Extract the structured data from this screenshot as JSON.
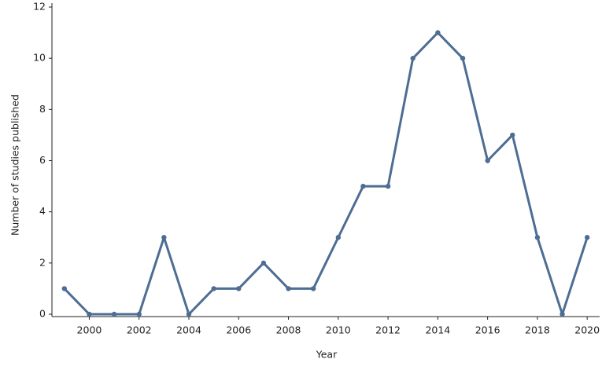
{
  "chart_data": {
    "type": "line",
    "x_label": "Year",
    "y_label": "Number of studies published",
    "x": [
      1999,
      2000,
      2001,
      2002,
      2003,
      2004,
      2005,
      2006,
      2007,
      2008,
      2009,
      2010,
      2011,
      2012,
      2013,
      2014,
      2015,
      2016,
      2017,
      2018,
      2019,
      2020
    ],
    "series": [
      {
        "color": "#4e6d93",
        "values": [
          1,
          0,
          0,
          0,
          3,
          0,
          1,
          1,
          2,
          1,
          1,
          3,
          5,
          5,
          10,
          11,
          10,
          6,
          7,
          3,
          0,
          3
        ]
      }
    ],
    "xlim": [
      1998.5,
      2020.5
    ],
    "xticks": [
      2000,
      2002,
      2004,
      2006,
      2008,
      2010,
      2012,
      2014,
      2016,
      2018,
      2020
    ],
    "ylim": [
      0,
      12
    ],
    "yticks": [
      0,
      2,
      4,
      6,
      8,
      10,
      12
    ],
    "grid": false
  }
}
